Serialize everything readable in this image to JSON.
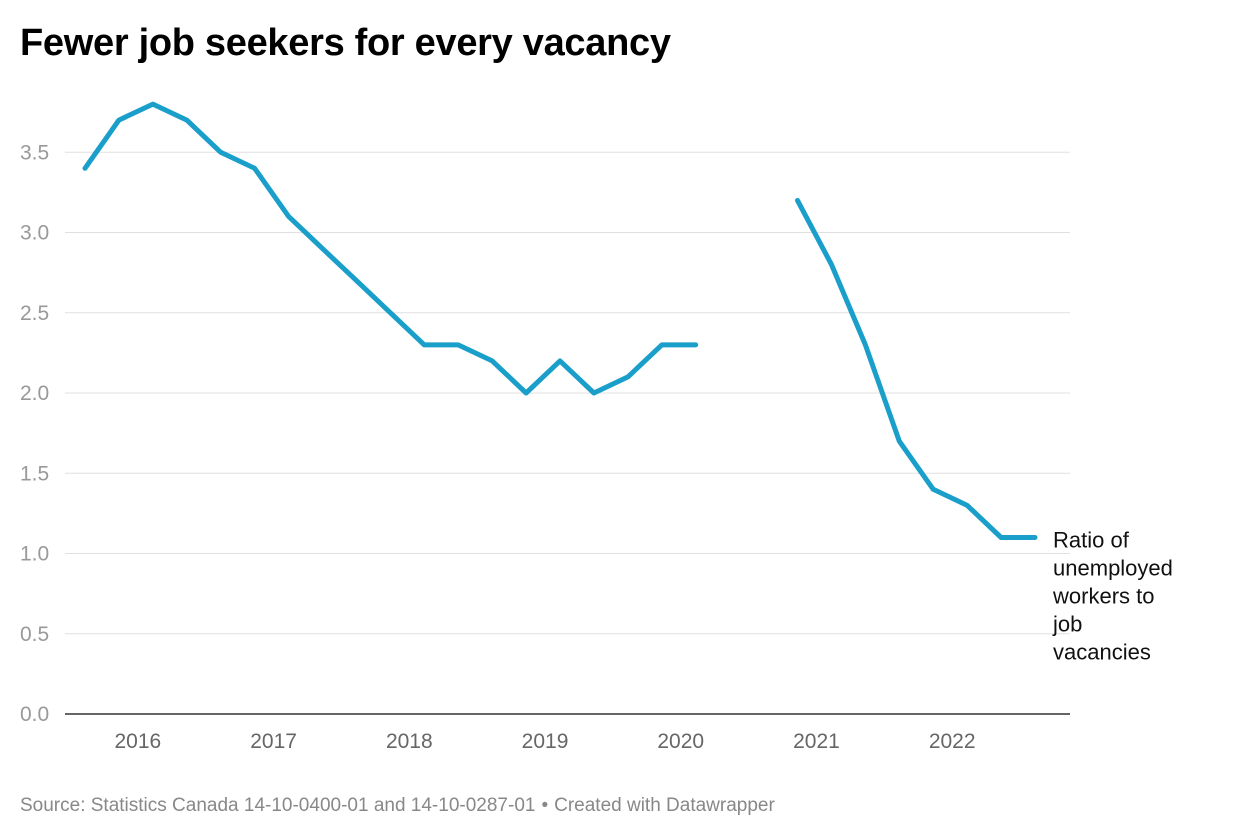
{
  "title": "Fewer job seekers for every vacancy",
  "footer": {
    "source": "Source: Statistics Canada 14-10-0400-01 and 14-10-0287-01",
    "separator": "•",
    "credit": "Created with Datawrapper"
  },
  "colors": {
    "line": "#1a9fcb",
    "grid": "#e0e0e0",
    "axis": "#333333",
    "ytick": "#999999",
    "xtick": "#666666",
    "annotation": "#111111"
  },
  "chart_data": {
    "type": "line",
    "title": "Fewer job seekers for every vacancy",
    "xlabel": "",
    "ylabel": "",
    "xlim": [
      2015.5,
      2022.625
    ],
    "ylim": [
      0,
      3.8
    ],
    "yticks": [
      0,
      0.5,
      1,
      1.5,
      2,
      2.5,
      3,
      3.5
    ],
    "ytick_labels": [
      "0.0",
      "0.5",
      "1.0",
      "1.5",
      "2.0",
      "2.5",
      "3.0",
      "3.5"
    ],
    "xticks": [
      2016,
      2017,
      2018,
      2019,
      2020,
      2021,
      2022
    ],
    "xtick_labels": [
      "2016",
      "2017",
      "2018",
      "2019",
      "2020",
      "2021",
      "2022"
    ],
    "grid": true,
    "series": [
      {
        "name": "Ratio of unemployed workers to job vacancies",
        "label_lines": [
          "Ratio of",
          "unemployed",
          "workers to",
          "job",
          "vacancies"
        ],
        "segments": [
          {
            "x": [
              2015.5,
              2015.75,
              2016.0,
              2016.25,
              2016.5,
              2016.75,
              2017.0,
              2017.25,
              2017.5,
              2017.75,
              2018.0,
              2018.25,
              2018.5,
              2018.75,
              2019.0,
              2019.25,
              2019.5,
              2019.75,
              2020.0
            ],
            "y": [
              3.4,
              3.7,
              3.8,
              3.7,
              3.5,
              3.4,
              3.1,
              2.9,
              2.7,
              2.5,
              2.3,
              2.3,
              2.2,
              2.0,
              2.2,
              2.0,
              2.1,
              2.3,
              2.3
            ]
          },
          {
            "x": [
              2020.75,
              2021.0,
              2021.25,
              2021.5,
              2021.75,
              2022.0,
              2022.25,
              2022.5
            ],
            "y": [
              3.2,
              2.8,
              2.3,
              1.7,
              1.4,
              1.3,
              1.1,
              1.1
            ]
          }
        ]
      }
    ]
  }
}
